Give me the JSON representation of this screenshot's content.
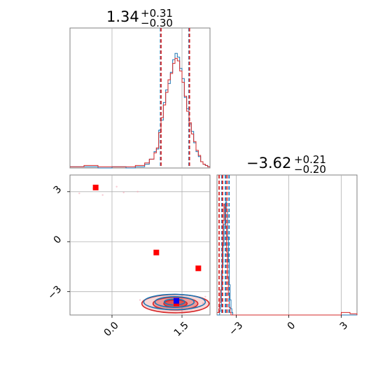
{
  "colors": {
    "blue": "#1f77b4",
    "red": "#d62728",
    "marker_red": "#ff0000",
    "marker_blue": "#0000ff",
    "grid": "#b0b0b0",
    "frame": "#808080"
  },
  "chart_data": {
    "type": "corner",
    "parameters": [
      {
        "title": {
          "value": "1.34",
          "plus": "+0.31",
          "minus": "−0.30"
        },
        "range": [
          -0.9,
          2.1
        ],
        "ticks": [
          0.0,
          1.5
        ],
        "tick_labels": [
          "0.0",
          "1.5"
        ],
        "quantiles_blue": [
          1.04,
          1.34,
          1.65
        ],
        "quantiles_red": [
          1.05,
          1.34,
          1.66
        ],
        "hist_blue": [
          [
            -0.9,
            0.01
          ],
          [
            -0.6,
            0.01
          ],
          [
            -0.3,
            0.0
          ],
          [
            0.0,
            0.01
          ],
          [
            0.3,
            0.0
          ],
          [
            0.5,
            0.01
          ],
          [
            0.6,
            0.01
          ],
          [
            0.7,
            0.03
          ],
          [
            0.8,
            0.07
          ],
          [
            0.9,
            0.13
          ],
          [
            0.95,
            0.15
          ],
          [
            1.0,
            0.3
          ],
          [
            1.05,
            0.38
          ],
          [
            1.1,
            0.52
          ],
          [
            1.15,
            0.62
          ],
          [
            1.2,
            0.67
          ],
          [
            1.25,
            0.76
          ],
          [
            1.3,
            0.86
          ],
          [
            1.35,
            0.91
          ],
          [
            1.4,
            0.88
          ],
          [
            1.45,
            0.79
          ],
          [
            1.5,
            0.71
          ],
          [
            1.55,
            0.56
          ],
          [
            1.6,
            0.47
          ],
          [
            1.65,
            0.35
          ],
          [
            1.7,
            0.29
          ],
          [
            1.75,
            0.2
          ],
          [
            1.8,
            0.13
          ],
          [
            1.85,
            0.09
          ],
          [
            1.9,
            0.05
          ],
          [
            1.95,
            0.03
          ],
          [
            2.0,
            0.02
          ],
          [
            2.05,
            0.01
          ]
        ],
        "hist_red": [
          [
            -0.9,
            0.01
          ],
          [
            -0.6,
            0.02
          ],
          [
            -0.3,
            0.01
          ],
          [
            0.0,
            0.01
          ],
          [
            0.3,
            0.01
          ],
          [
            0.5,
            0.02
          ],
          [
            0.6,
            0.02
          ],
          [
            0.7,
            0.04
          ],
          [
            0.8,
            0.07
          ],
          [
            0.9,
            0.12
          ],
          [
            0.95,
            0.16
          ],
          [
            1.0,
            0.28
          ],
          [
            1.05,
            0.4
          ],
          [
            1.1,
            0.5
          ],
          [
            1.15,
            0.6
          ],
          [
            1.2,
            0.7
          ],
          [
            1.25,
            0.75
          ],
          [
            1.3,
            0.83
          ],
          [
            1.35,
            0.87
          ],
          [
            1.4,
            0.85
          ],
          [
            1.45,
            0.77
          ],
          [
            1.5,
            0.68
          ],
          [
            1.55,
            0.57
          ],
          [
            1.6,
            0.45
          ],
          [
            1.65,
            0.36
          ],
          [
            1.7,
            0.27
          ],
          [
            1.75,
            0.21
          ],
          [
            1.8,
            0.14
          ],
          [
            1.85,
            0.1
          ],
          [
            1.9,
            0.05
          ],
          [
            1.95,
            0.03
          ],
          [
            2.0,
            0.02
          ],
          [
            2.05,
            0.01
          ]
        ]
      },
      {
        "title": {
          "value": "−3.62",
          "plus": "+0.21",
          "minus": "−0.20"
        },
        "range": [
          -4.1,
          3.9
        ],
        "ticks": [
          -3,
          0,
          3
        ],
        "tick_labels": [
          "−3",
          "0",
          "3"
        ],
        "quantiles_blue": [
          -3.82,
          -3.62,
          -3.41
        ],
        "quantiles_red": [
          -3.98,
          -3.78,
          -3.53
        ],
        "hist_blue": [
          [
            -4.1,
            0.0
          ],
          [
            -3.95,
            0.03
          ],
          [
            -3.9,
            0.08
          ],
          [
            -3.85,
            0.2
          ],
          [
            -3.8,
            0.38
          ],
          [
            -3.75,
            0.55
          ],
          [
            -3.7,
            0.72
          ],
          [
            -3.65,
            0.85
          ],
          [
            -3.6,
            0.9
          ],
          [
            -3.55,
            0.82
          ],
          [
            -3.5,
            0.62
          ],
          [
            -3.45,
            0.42
          ],
          [
            -3.4,
            0.24
          ],
          [
            -3.35,
            0.12
          ],
          [
            -3.3,
            0.05
          ],
          [
            -3.25,
            0.02
          ],
          [
            -3.2,
            0.0
          ],
          [
            3.9,
            0.0
          ]
        ],
        "hist_red": [
          [
            -4.1,
            0.02
          ],
          [
            -4.0,
            0.05
          ],
          [
            -3.95,
            0.1
          ],
          [
            -3.9,
            0.2
          ],
          [
            -3.85,
            0.35
          ],
          [
            -3.8,
            0.55
          ],
          [
            -3.75,
            0.75
          ],
          [
            -3.7,
            0.88
          ],
          [
            -3.65,
            0.85
          ],
          [
            -3.6,
            0.7
          ],
          [
            -3.55,
            0.5
          ],
          [
            -3.5,
            0.3
          ],
          [
            -3.45,
            0.16
          ],
          [
            -3.4,
            0.06
          ],
          [
            -3.35,
            0.02
          ],
          [
            -3.3,
            0.0
          ],
          [
            2.9,
            0.0
          ],
          [
            3.0,
            0.02
          ],
          [
            3.5,
            0.01
          ],
          [
            3.9,
            0.0
          ]
        ]
      }
    ],
    "joint": {
      "x_param": 0,
      "y_param": 1,
      "contours_blue": [
        {
          "cx": 1.34,
          "cy": -3.62,
          "rx": 0.22,
          "ry": 0.18
        },
        {
          "cx": 1.34,
          "cy": -3.62,
          "rx": 0.42,
          "ry": 0.32
        },
        {
          "cx": 1.34,
          "cy": -3.62,
          "rx": 0.66,
          "ry": 0.46
        }
      ],
      "contours_red": [
        {
          "cx": 1.36,
          "cy": -3.72,
          "rx": 0.25,
          "ry": 0.22
        },
        {
          "cx": 1.36,
          "cy": -3.72,
          "rx": 0.48,
          "ry": 0.38
        },
        {
          "cx": 1.36,
          "cy": -3.72,
          "rx": 0.72,
          "ry": 0.55
        }
      ],
      "scatter_red": [
        [
          -0.4,
          3.2
        ],
        [
          0.25,
          2.95
        ],
        [
          -0.7,
          2.9
        ],
        [
          0.55,
          3.0
        ],
        [
          0.1,
          3.3
        ],
        [
          -0.2,
          2.8
        ],
        [
          0.6,
          -3.5
        ],
        [
          1.95,
          -3.7
        ],
        [
          2.0,
          -3.3
        ]
      ],
      "markers_red": [
        [
          -0.35,
          3.25
        ],
        [
          0.95,
          -0.65
        ],
        [
          1.85,
          -1.6
        ],
        [
          1.38,
          -3.7
        ]
      ],
      "markers_blue": [
        [
          1.38,
          -3.55
        ]
      ]
    }
  }
}
